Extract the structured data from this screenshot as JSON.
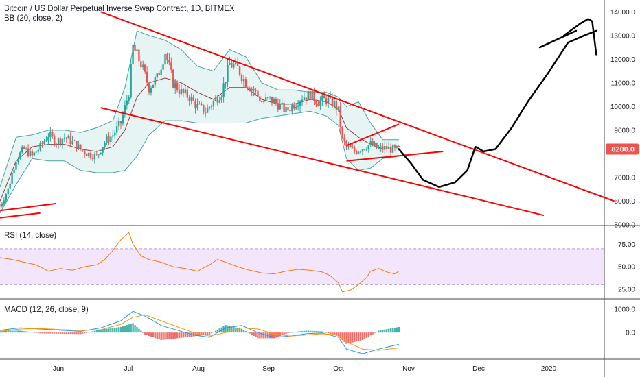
{
  "header": {
    "title": "Bitcoin / US Dollar Perpetual Inverse Swap Contract, 1D, BITMEX",
    "bb_label": "BB (20, close, 2)",
    "rsi_label": "RSI (14, close)",
    "macd_label": "MACD (12, 26, close, 9)",
    "price_tag": "8200.0"
  },
  "colors": {
    "up": "#26a69a",
    "down": "#ef5350",
    "bb": "#4a9fa5",
    "bb_fill": "#e6f5f4",
    "trend": "#ff0000",
    "rsi_line": "#f57c00",
    "rsi_band": "#f3e5fc",
    "macd_line": "#2196f3",
    "signal_line": "#ff9800",
    "drawing": "#000000",
    "price_tag_bg": "#ef5350"
  },
  "chart_data": [
    {
      "type": "candlestick",
      "title": "Bitcoin / US Dollar Perpetual Inverse Swap Contract, 1D, BITMEX",
      "ylim": [
        5000,
        14500
      ],
      "yticks": [
        "5000.0",
        "6000.0",
        "7000.0",
        "8000.0",
        "9000.0",
        "10000.0",
        "11000.0",
        "12000.0",
        "13000.0",
        "14000.0"
      ],
      "xticks": [
        "Jun",
        "Jul",
        "Aug",
        "Sep",
        "Oct",
        "Nov",
        "Dec",
        "2020"
      ],
      "last_price": 8200.0,
      "close_path": [
        [
          0,
          5800
        ],
        [
          4,
          6500
        ],
        [
          8,
          7800
        ],
        [
          12,
          8200
        ],
        [
          16,
          7900
        ],
        [
          20,
          8300
        ],
        [
          24,
          8800
        ],
        [
          28,
          8500
        ],
        [
          32,
          8700
        ],
        [
          36,
          8500
        ],
        [
          40,
          8200
        ],
        [
          44,
          8000
        ],
        [
          48,
          7900
        ],
        [
          52,
          8500
        ],
        [
          56,
          8800
        ],
        [
          60,
          9300
        ],
        [
          64,
          10600
        ],
        [
          66,
          12500
        ],
        [
          70,
          11800
        ],
        [
          74,
          10800
        ],
        [
          78,
          11200
        ],
        [
          82,
          12300
        ],
        [
          86,
          11000
        ],
        [
          90,
          10600
        ],
        [
          94,
          10400
        ],
        [
          98,
          10000
        ],
        [
          102,
          9800
        ],
        [
          106,
          10200
        ],
        [
          110,
          10600
        ],
        [
          114,
          11800
        ],
        [
          118,
          11600
        ],
        [
          122,
          11000
        ],
        [
          126,
          10700
        ],
        [
          130,
          10200
        ],
        [
          134,
          10300
        ],
        [
          138,
          10100
        ],
        [
          142,
          9800
        ],
        [
          146,
          10100
        ],
        [
          150,
          10400
        ],
        [
          154,
          10500
        ],
        [
          158,
          10200
        ],
        [
          162,
          10300
        ],
        [
          166,
          10100
        ],
        [
          168,
          9800
        ],
        [
          170,
          8600
        ],
        [
          172,
          8300
        ],
        [
          176,
          8100
        ],
        [
          180,
          8250
        ],
        [
          184,
          8400
        ],
        [
          188,
          8200
        ],
        [
          192,
          8250
        ],
        [
          196,
          8150
        ],
        [
          198,
          8200
        ]
      ],
      "bb_upper": [
        [
          0,
          6600
        ],
        [
          8,
          8700
        ],
        [
          16,
          8800
        ],
        [
          24,
          9000
        ],
        [
          32,
          9000
        ],
        [
          40,
          8900
        ],
        [
          48,
          9100
        ],
        [
          56,
          9400
        ],
        [
          62,
          10800
        ],
        [
          68,
          13200
        ],
        [
          74,
          13000
        ],
        [
          82,
          12800
        ],
        [
          90,
          12400
        ],
        [
          98,
          11700
        ],
        [
          106,
          11500
        ],
        [
          114,
          12400
        ],
        [
          122,
          12100
        ],
        [
          130,
          11000
        ],
        [
          138,
          10700
        ],
        [
          146,
          10700
        ],
        [
          154,
          10600
        ],
        [
          162,
          10600
        ],
        [
          168,
          10400
        ],
        [
          172,
          10000
        ],
        [
          178,
          10200
        ],
        [
          184,
          9300
        ],
        [
          190,
          8600
        ],
        [
          198,
          8600
        ]
      ],
      "bb_lower": [
        [
          0,
          5500
        ],
        [
          8,
          6700
        ],
        [
          16,
          7800
        ],
        [
          24,
          7700
        ],
        [
          32,
          7700
        ],
        [
          40,
          7300
        ],
        [
          48,
          7200
        ],
        [
          56,
          7200
        ],
        [
          62,
          7300
        ],
        [
          68,
          7900
        ],
        [
          74,
          8800
        ],
        [
          82,
          9400
        ],
        [
          90,
          9400
        ],
        [
          98,
          9300
        ],
        [
          106,
          9300
        ],
        [
          114,
          9300
        ],
        [
          122,
          9300
        ],
        [
          130,
          9500
        ],
        [
          138,
          9600
        ],
        [
          146,
          9700
        ],
        [
          154,
          9800
        ],
        [
          162,
          9600
        ],
        [
          168,
          9200
        ],
        [
          172,
          7800
        ],
        [
          178,
          7300
        ],
        [
          184,
          7400
        ],
        [
          190,
          7800
        ],
        [
          198,
          7900
        ]
      ],
      "bb_basis": [
        [
          0,
          6000
        ],
        [
          8,
          7700
        ],
        [
          16,
          8300
        ],
        [
          24,
          8400
        ],
        [
          32,
          8400
        ],
        [
          40,
          8200
        ],
        [
          48,
          8100
        ],
        [
          56,
          8300
        ],
        [
          62,
          9000
        ],
        [
          68,
          10400
        ],
        [
          74,
          11000
        ],
        [
          82,
          11200
        ],
        [
          90,
          11000
        ],
        [
          98,
          10600
        ],
        [
          106,
          10300
        ],
        [
          114,
          10800
        ],
        [
          122,
          10800
        ],
        [
          130,
          10300
        ],
        [
          138,
          10100
        ],
        [
          146,
          10100
        ],
        [
          154,
          10300
        ],
        [
          162,
          10200
        ],
        [
          168,
          9900
        ],
        [
          172,
          9100
        ],
        [
          178,
          8700
        ],
        [
          184,
          8400
        ],
        [
          190,
          8200
        ],
        [
          198,
          8200
        ]
      ],
      "trendlines": [
        [
          [
            50,
            14000
          ],
          [
            305,
            6000
          ]
        ],
        [
          [
            50,
            9950
          ],
          [
            270,
            5400
          ]
        ],
        [
          [
            172,
            8350
          ],
          [
            198,
            9250
          ]
        ],
        [
          [
            172,
            7700
          ],
          [
            220,
            8100
          ]
        ],
        [
          [
            0,
            5600
          ],
          [
            28,
            5900
          ]
        ],
        [
          [
            0,
            5300
          ],
          [
            20,
            5500
          ]
        ]
      ],
      "projection": [
        [
          198,
          8200
        ],
        [
          204,
          7600
        ],
        [
          210,
          6900
        ],
        [
          218,
          6600
        ],
        [
          226,
          6800
        ],
        [
          232,
          7300
        ],
        [
          236,
          8300
        ],
        [
          240,
          8100
        ],
        [
          246,
          8200
        ],
        [
          254,
          9100
        ],
        [
          262,
          10200
        ],
        [
          272,
          11400
        ],
        [
          282,
          12700
        ],
        [
          290,
          13000
        ],
        [
          296,
          13200
        ]
      ],
      "projection_tail": [
        [
          280,
          13000
        ],
        [
          288,
          13500
        ],
        [
          292,
          13700
        ],
        [
          294,
          13600
        ],
        [
          296,
          12200
        ]
      ]
    },
    {
      "type": "line",
      "title": "RSI (14, close)",
      "ylim": [
        15,
        95
      ],
      "yticks": [
        "25.00",
        "50.00",
        "75.00"
      ],
      "band": [
        30,
        70
      ],
      "values": [
        [
          0,
          60
        ],
        [
          6,
          58
        ],
        [
          12,
          55
        ],
        [
          18,
          52
        ],
        [
          24,
          45
        ],
        [
          30,
          48
        ],
        [
          36,
          46
        ],
        [
          42,
          50
        ],
        [
          48,
          52
        ],
        [
          52,
          58
        ],
        [
          56,
          68
        ],
        [
          60,
          80
        ],
        [
          64,
          88
        ],
        [
          66,
          75
        ],
        [
          70,
          62
        ],
        [
          74,
          58
        ],
        [
          80,
          55
        ],
        [
          86,
          50
        ],
        [
          92,
          48
        ],
        [
          98,
          45
        ],
        [
          104,
          52
        ],
        [
          108,
          58
        ],
        [
          112,
          55
        ],
        [
          118,
          50
        ],
        [
          124,
          46
        ],
        [
          130,
          43
        ],
        [
          136,
          42
        ],
        [
          142,
          45
        ],
        [
          148,
          47
        ],
        [
          154,
          46
        ],
        [
          160,
          44
        ],
        [
          164,
          40
        ],
        [
          168,
          32
        ],
        [
          170,
          22
        ],
        [
          174,
          24
        ],
        [
          178,
          30
        ],
        [
          182,
          38
        ],
        [
          184,
          45
        ],
        [
          188,
          48
        ],
        [
          192,
          44
        ],
        [
          196,
          42
        ],
        [
          198,
          45
        ]
      ]
    },
    {
      "type": "line",
      "title": "MACD (12, 26, close, 9)",
      "ylim": [
        -1100,
        1400
      ],
      "yticks": [
        "0.0",
        "1000.0"
      ],
      "macd": [
        [
          0,
          100
        ],
        [
          10,
          200
        ],
        [
          20,
          150
        ],
        [
          30,
          100
        ],
        [
          40,
          50
        ],
        [
          50,
          200
        ],
        [
          60,
          500
        ],
        [
          66,
          900
        ],
        [
          72,
          700
        ],
        [
          80,
          300
        ],
        [
          88,
          100
        ],
        [
          96,
          -100
        ],
        [
          104,
          -200
        ],
        [
          112,
          200
        ],
        [
          120,
          300
        ],
        [
          128,
          0
        ],
        [
          136,
          -200
        ],
        [
          144,
          -150
        ],
        [
          152,
          -50
        ],
        [
          160,
          -20
        ],
        [
          168,
          -200
        ],
        [
          172,
          -700
        ],
        [
          180,
          -900
        ],
        [
          188,
          -700
        ],
        [
          198,
          -500
        ]
      ],
      "signal": [
        [
          0,
          50
        ],
        [
          10,
          150
        ],
        [
          20,
          170
        ],
        [
          30,
          130
        ],
        [
          40,
          90
        ],
        [
          50,
          120
        ],
        [
          60,
          350
        ],
        [
          66,
          650
        ],
        [
          72,
          750
        ],
        [
          80,
          500
        ],
        [
          88,
          250
        ],
        [
          96,
          0
        ],
        [
          104,
          -150
        ],
        [
          112,
          0
        ],
        [
          120,
          200
        ],
        [
          128,
          150
        ],
        [
          136,
          -50
        ],
        [
          144,
          -150
        ],
        [
          152,
          -100
        ],
        [
          160,
          -50
        ],
        [
          168,
          -100
        ],
        [
          172,
          -400
        ],
        [
          180,
          -700
        ],
        [
          188,
          -750
        ],
        [
          198,
          -650
        ]
      ]
    }
  ]
}
